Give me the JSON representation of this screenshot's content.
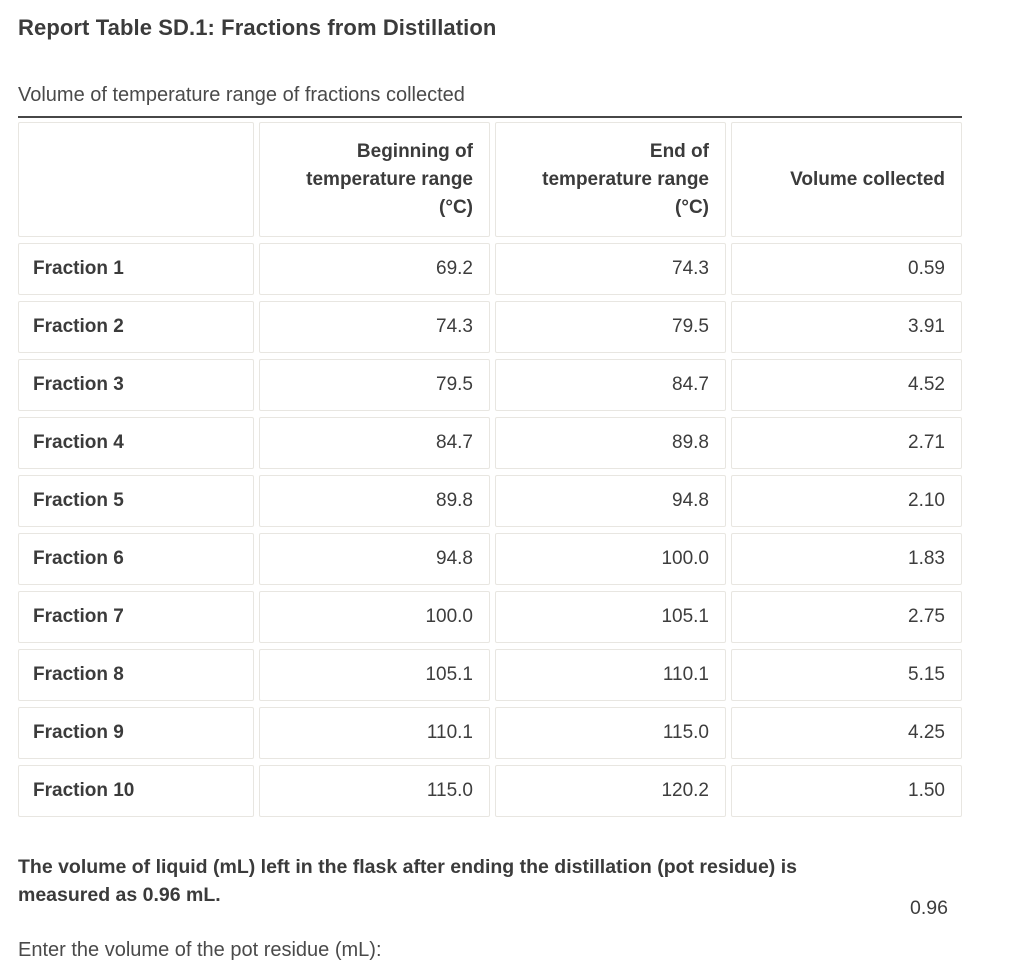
{
  "page": {
    "title": "Report Table SD.1: Fractions from Distillation",
    "subtitle": "Volume of temperature range of fractions collected"
  },
  "table": {
    "columns": [
      "",
      "Beginning of\ntemperature range\n(°C)",
      "End of\ntemperature range\n(°C)",
      "Volume collected"
    ],
    "rows": [
      {
        "label": "Fraction 1",
        "begin": "69.2",
        "end": "74.3",
        "volume": "0.59"
      },
      {
        "label": "Fraction 2",
        "begin": "74.3",
        "end": "79.5",
        "volume": "3.91"
      },
      {
        "label": "Fraction 3",
        "begin": "79.5",
        "end": "84.7",
        "volume": "4.52"
      },
      {
        "label": "Fraction 4",
        "begin": "84.7",
        "end": "89.8",
        "volume": "2.71"
      },
      {
        "label": "Fraction 5",
        "begin": "89.8",
        "end": "94.8",
        "volume": "2.10"
      },
      {
        "label": "Fraction 6",
        "begin": "94.8",
        "end": "100.0",
        "volume": "1.83"
      },
      {
        "label": "Fraction 7",
        "begin": "100.0",
        "end": "105.1",
        "volume": "2.75"
      },
      {
        "label": "Fraction 8",
        "begin": "105.1",
        "end": "110.1",
        "volume": "5.15"
      },
      {
        "label": "Fraction 9",
        "begin": "110.1",
        "end": "115.0",
        "volume": "4.25"
      },
      {
        "label": "Fraction 10",
        "begin": "115.0",
        "end": "120.2",
        "volume": "1.50"
      }
    ]
  },
  "pot_residue": {
    "question": "The volume of liquid (mL) left in the flask after ending the distillation (pot residue) is measured as 0.96 mL.",
    "value": "0.96",
    "prompt": "Enter the volume of the pot residue (mL):"
  },
  "colors": {
    "text": "#3d3d3d",
    "cell_border": "#e8e6e1",
    "divider": "#474747",
    "background": "#ffffff"
  }
}
